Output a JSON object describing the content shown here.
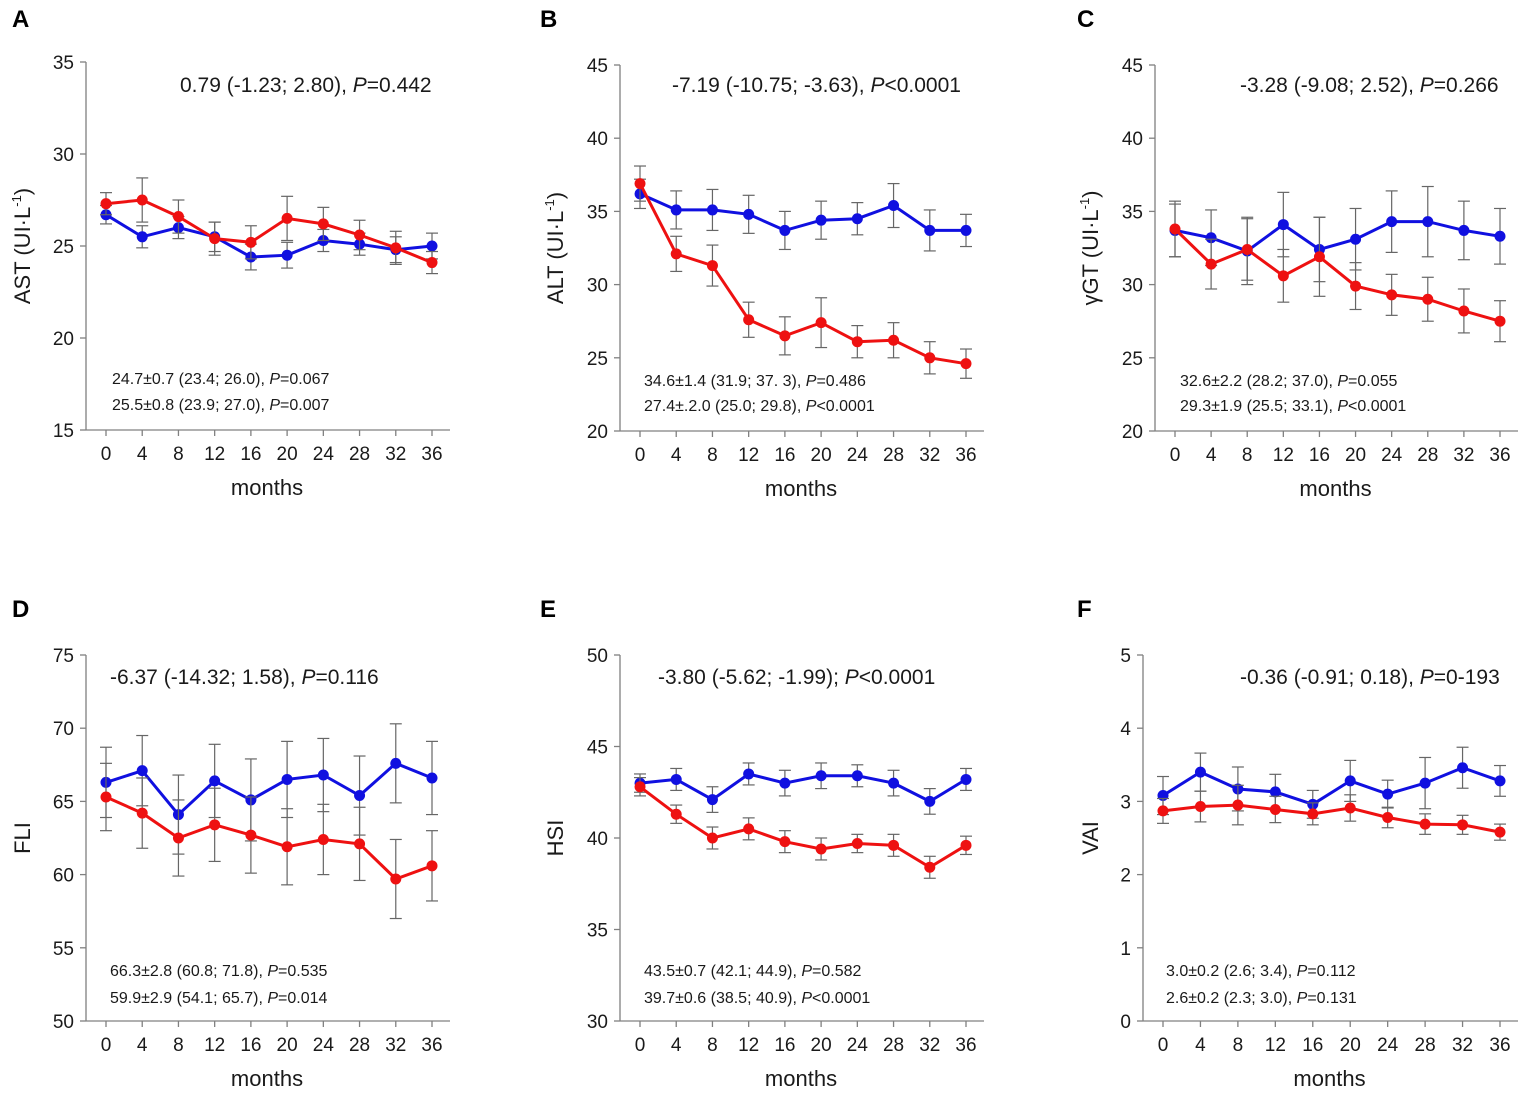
{
  "figure": {
    "colors": {
      "blue": "#1010e0",
      "red": "#ee1111",
      "axis": "#808080",
      "errorbar": "#666666"
    }
  },
  "chart_data": [
    {
      "panel": "A",
      "type": "line",
      "ylabel": "AST (UI·L-1)",
      "ylabel_main": "AST (UI·L",
      "ylabel_sup": "-1",
      "ylabel_close": ")",
      "xlabel": "months",
      "x": [
        0,
        4,
        8,
        12,
        16,
        20,
        24,
        28,
        32,
        36
      ],
      "ylim": [
        15,
        35
      ],
      "yticks": [
        15,
        20,
        25,
        30,
        35
      ],
      "series": [
        {
          "name": "blue",
          "values": [
            26.7,
            25.5,
            26.0,
            25.5,
            24.4,
            24.5,
            25.3,
            25.1,
            24.8,
            25.0
          ],
          "errors": [
            0.5,
            0.6,
            0.6,
            0.8,
            0.7,
            0.7,
            0.6,
            0.6,
            0.7,
            0.7
          ]
        },
        {
          "name": "red",
          "values": [
            27.3,
            27.5,
            26.6,
            25.4,
            25.2,
            26.5,
            26.2,
            25.6,
            24.9,
            24.1
          ],
          "errors": [
            0.6,
            1.2,
            0.9,
            0.9,
            0.9,
            1.2,
            0.9,
            0.8,
            0.9,
            0.6
          ]
        }
      ],
      "stat_top": {
        "text": "0.79 (-1.23; 2.80), ",
        "p": "=0.442"
      },
      "stat_blue": {
        "text": "24.7±0.7 (23.4; 26.0), ",
        "p": "=0.067"
      },
      "stat_red": {
        "text": "25.5±0.8 (23.9; 27.0), ",
        "p": "=0.007"
      }
    },
    {
      "panel": "B",
      "type": "line",
      "ylabel": "ALT (UI·L-1)",
      "ylabel_main": "ALT (UI·L",
      "ylabel_sup": "-1",
      "ylabel_close": ")",
      "xlabel": "months",
      "x": [
        0,
        4,
        8,
        12,
        16,
        20,
        24,
        28,
        32,
        36
      ],
      "ylim": [
        20,
        45
      ],
      "yticks": [
        20,
        25,
        30,
        35,
        40,
        45
      ],
      "series": [
        {
          "name": "blue",
          "values": [
            36.2,
            35.1,
            35.1,
            34.8,
            33.7,
            34.4,
            34.5,
            35.4,
            33.7,
            33.7
          ],
          "errors": [
            1.0,
            1.3,
            1.4,
            1.3,
            1.3,
            1.3,
            1.1,
            1.5,
            1.4,
            1.1
          ]
        },
        {
          "name": "red",
          "values": [
            36.9,
            32.1,
            31.3,
            27.6,
            26.5,
            27.4,
            26.1,
            26.2,
            25.0,
            24.6
          ],
          "errors": [
            1.2,
            1.2,
            1.4,
            1.2,
            1.3,
            1.7,
            1.1,
            1.2,
            1.1,
            1.0
          ]
        }
      ],
      "stat_top": {
        "text": "-7.19 (-10.75; -3.63), ",
        "p": "<0.0001"
      },
      "stat_blue": {
        "text": "34.6±1.4 (31.9; 37. 3), ",
        "p": "=0.486"
      },
      "stat_red": {
        "text": "27.4±.2.0 (25.0; 29.8), ",
        "p": "<0.0001"
      }
    },
    {
      "panel": "C",
      "type": "line",
      "ylabel": "γGT (UI·L-1)",
      "ylabel_main": "γGT (UI·L",
      "ylabel_sup": "-1",
      "ylabel_close": ")",
      "xlabel": "months",
      "x": [
        0,
        4,
        8,
        12,
        16,
        20,
        24,
        28,
        32,
        36
      ],
      "ylim": [
        20,
        45
      ],
      "yticks": [
        20,
        25,
        30,
        35,
        40,
        45
      ],
      "series": [
        {
          "name": "blue",
          "values": [
            33.7,
            33.2,
            32.3,
            34.1,
            32.4,
            33.1,
            34.3,
            34.3,
            33.7,
            33.3
          ],
          "errors": [
            1.8,
            1.9,
            2.3,
            2.2,
            2.2,
            2.1,
            2.1,
            2.4,
            2.0,
            1.9
          ]
        },
        {
          "name": "red",
          "values": [
            33.8,
            31.4,
            32.4,
            30.6,
            31.9,
            29.9,
            29.3,
            29.0,
            28.2,
            27.5
          ],
          "errors": [
            1.9,
            1.7,
            2.1,
            1.8,
            2.7,
            1.6,
            1.4,
            1.5,
            1.5,
            1.4
          ]
        }
      ],
      "stat_top": {
        "text": "-3.28 (-9.08; 2.52), ",
        "p": "=0.266"
      },
      "stat_blue": {
        "text": "32.6±2.2 (28.2; 37.0), ",
        "p": "=0.055"
      },
      "stat_red": {
        "text": "29.3±1.9 (25.5; 33.1), ",
        "p": "<0.0001"
      }
    },
    {
      "panel": "D",
      "type": "line",
      "ylabel": "FLI",
      "ylabel_main": "FLI",
      "ylabel_sup": "",
      "ylabel_close": "",
      "xlabel": "months",
      "x": [
        0,
        4,
        8,
        12,
        16,
        20,
        24,
        28,
        32,
        36
      ],
      "ylim": [
        50,
        75
      ],
      "yticks": [
        50,
        55,
        60,
        65,
        70,
        75
      ],
      "series": [
        {
          "name": "blue",
          "values": [
            66.3,
            67.1,
            64.1,
            66.4,
            65.1,
            66.5,
            66.8,
            65.4,
            67.6,
            66.6
          ],
          "errors": [
            2.4,
            2.4,
            2.7,
            2.5,
            2.8,
            2.6,
            2.5,
            2.7,
            2.7,
            2.5
          ]
        },
        {
          "name": "red",
          "values": [
            65.3,
            64.2,
            62.5,
            63.4,
            62.7,
            61.9,
            62.4,
            62.1,
            59.7,
            60.6
          ],
          "errors": [
            2.3,
            2.4,
            2.6,
            2.5,
            2.6,
            2.6,
            2.4,
            2.5,
            2.7,
            2.4
          ]
        }
      ],
      "stat_top": {
        "text": "-6.37 (-14.32; 1.58), ",
        "p": "=0.116"
      },
      "stat_blue": {
        "text": "66.3±2.8 (60.8; 71.8), ",
        "p": "=0.535"
      },
      "stat_red": {
        "text": "59.9±2.9 (54.1; 65.7), ",
        "p": "=0.014"
      }
    },
    {
      "panel": "E",
      "type": "line",
      "ylabel": "HSI",
      "ylabel_main": "HSI",
      "ylabel_sup": "",
      "ylabel_close": "",
      "xlabel": "months",
      "x": [
        0,
        4,
        8,
        12,
        16,
        20,
        24,
        28,
        32,
        36
      ],
      "ylim": [
        30,
        50
      ],
      "yticks": [
        30,
        35,
        40,
        45,
        50
      ],
      "series": [
        {
          "name": "blue",
          "values": [
            43.0,
            43.2,
            42.1,
            43.5,
            43.0,
            43.4,
            43.4,
            43.0,
            42.0,
            43.2
          ],
          "errors": [
            0.5,
            0.6,
            0.7,
            0.6,
            0.7,
            0.7,
            0.6,
            0.7,
            0.7,
            0.6
          ]
        },
        {
          "name": "red",
          "values": [
            42.8,
            41.3,
            40.0,
            40.5,
            39.8,
            39.4,
            39.7,
            39.6,
            38.4,
            39.6
          ],
          "errors": [
            0.5,
            0.5,
            0.6,
            0.6,
            0.6,
            0.6,
            0.5,
            0.6,
            0.6,
            0.5
          ]
        }
      ],
      "stat_top": {
        "text": "-3.80 (-5.62; -1.99); ",
        "p": "<0.0001"
      },
      "stat_blue": {
        "text": "43.5±0.7 (42.1; 44.9), ",
        "p": "=0.582"
      },
      "stat_red": {
        "text": "39.7±0.6 (38.5; 40.9), ",
        "p": "<0.0001"
      }
    },
    {
      "panel": "F",
      "type": "line",
      "ylabel": "VAI",
      "ylabel_main": "VAI",
      "ylabel_sup": "",
      "ylabel_close": "",
      "xlabel": "months",
      "x": [
        0,
        4,
        8,
        12,
        16,
        20,
        24,
        28,
        32,
        36
      ],
      "ylim": [
        0,
        5
      ],
      "yticks": [
        0,
        1,
        2,
        3,
        4,
        5
      ],
      "series": [
        {
          "name": "blue",
          "values": [
            3.08,
            3.4,
            3.17,
            3.13,
            2.96,
            3.28,
            3.1,
            3.25,
            3.46,
            3.28
          ],
          "errors": [
            0.26,
            0.26,
            0.3,
            0.24,
            0.19,
            0.28,
            0.19,
            0.35,
            0.28,
            0.21
          ]
        },
        {
          "name": "red",
          "values": [
            2.87,
            2.93,
            2.95,
            2.89,
            2.83,
            2.91,
            2.78,
            2.69,
            2.68,
            2.58
          ],
          "errors": [
            0.17,
            0.21,
            0.27,
            0.18,
            0.15,
            0.18,
            0.14,
            0.14,
            0.13,
            0.11
          ]
        }
      ],
      "stat_top": {
        "text": "-0.36 (-0.91; 0.18), ",
        "p": "=0-193"
      },
      "stat_blue": {
        "text": "3.0±0.2 (2.6; 3.4), ",
        "p": "=0.112"
      },
      "stat_red": {
        "text": "2.6±0.2 (2.3; 3.0), ",
        "p": "=0.131"
      }
    }
  ]
}
